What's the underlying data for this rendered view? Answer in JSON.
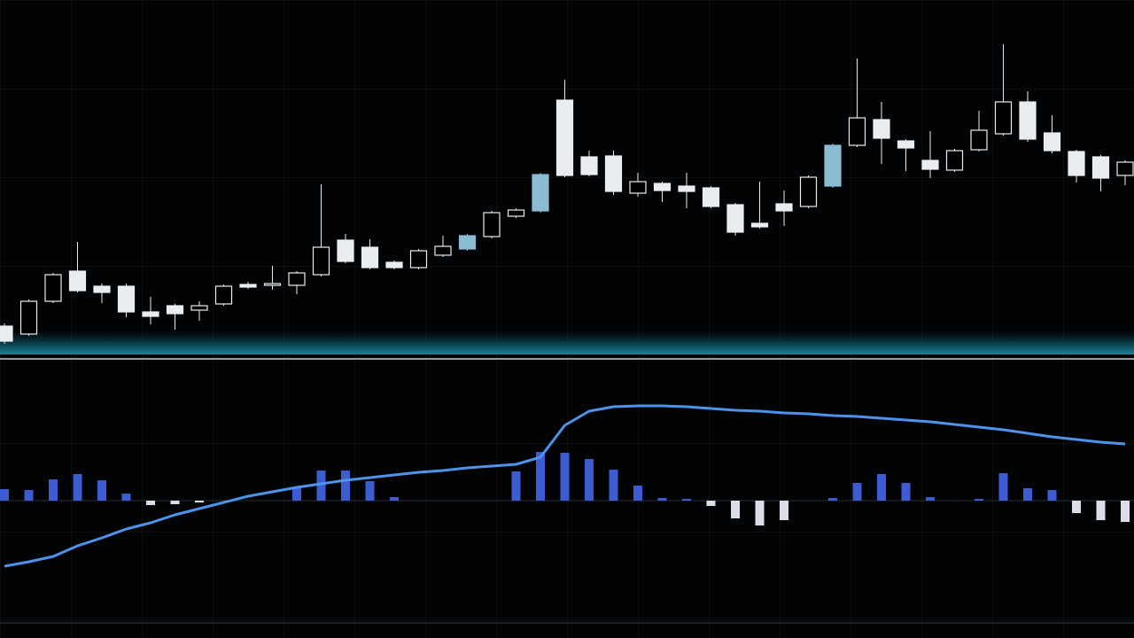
{
  "chart_data": [
    {
      "type": "candlestick",
      "open": [
        32,
        23,
        60,
        94,
        77,
        77,
        48,
        55,
        50,
        57,
        79,
        78,
        78,
        90,
        129,
        121,
        104,
        98,
        112,
        119,
        133,
        156,
        162,
        287,
        223,
        224,
        182,
        193,
        190,
        188,
        169,
        148,
        170,
        167,
        190,
        236,
        265,
        241,
        219,
        208,
        231,
        249,
        285,
        250,
        229,
        223,
        202
      ],
      "close": [
        15,
        60,
        90,
        72,
        70,
        48,
        43,
        46,
        55,
        77,
        76,
        80,
        92,
        121,
        105,
        98,
        98,
        117,
        122,
        134,
        160,
        163,
        203,
        202,
        203,
        184,
        195,
        185,
        184,
        167,
        138,
        144,
        162,
        200,
        236,
        267,
        244,
        233,
        209,
        230,
        253,
        285,
        243,
        230,
        202,
        199,
        217
      ],
      "high": [
        35,
        62,
        92,
        127,
        80,
        80,
        65,
        57,
        60,
        79,
        82,
        100,
        94,
        192,
        136,
        130,
        106,
        119,
        134,
        136,
        162,
        165,
        205,
        310,
        230,
        230,
        205,
        195,
        205,
        190,
        171,
        195,
        185,
        202,
        238,
        334,
        285,
        243,
        252,
        232,
        275,
        350,
        297,
        270,
        231,
        225,
        219
      ],
      "low": [
        12,
        21,
        58,
        70,
        58,
        42,
        34,
        28,
        38,
        55,
        74,
        73,
        68,
        88,
        103,
        96,
        96,
        96,
        110,
        117,
        131,
        154,
        160,
        200,
        201,
        180,
        178,
        172,
        165,
        165,
        134,
        142,
        145,
        165,
        188,
        234,
        215,
        207,
        199,
        206,
        229,
        247,
        240,
        227,
        194,
        184,
        191
      ],
      "up_color": "#000000",
      "down_color": "#e9edf1",
      "outline_color": "#e9edf1",
      "highlighted": [
        19,
        22,
        34
      ],
      "highlight_color": "#8cbcd2",
      "ylim": [
        0,
        400
      ]
    },
    {
      "type": "bar-line",
      "series": [
        {
          "kind": "bar",
          "color": "#3d5cd4",
          "negative_color": "#d9dee8",
          "values": [
            13,
            12,
            24,
            30,
            23,
            8,
            -5,
            -4,
            -2,
            0,
            0,
            0,
            15,
            34,
            34,
            22,
            4,
            0,
            0,
            0,
            0,
            33,
            55,
            54,
            47,
            35,
            17,
            3,
            2,
            -6,
            -20,
            -28,
            -22,
            0,
            3,
            20,
            30,
            20,
            4,
            0,
            2,
            31,
            14,
            12,
            -14,
            -22,
            -24
          ]
        },
        {
          "kind": "line",
          "color": "#4f92ea",
          "values": [
            -74,
            -69,
            -63,
            -51,
            -42,
            -32,
            -25,
            -16,
            -9,
            -2,
            5,
            10,
            15,
            19,
            23,
            26,
            29,
            32,
            34,
            37,
            39,
            41,
            49,
            85,
            101,
            106,
            107,
            107,
            106,
            104,
            102,
            101,
            99,
            98,
            96,
            95,
            93,
            91,
            89,
            86,
            83,
            80,
            76,
            72,
            69,
            66,
            64
          ]
        }
      ],
      "ylim": [
        -135,
        155
      ]
    }
  ]
}
